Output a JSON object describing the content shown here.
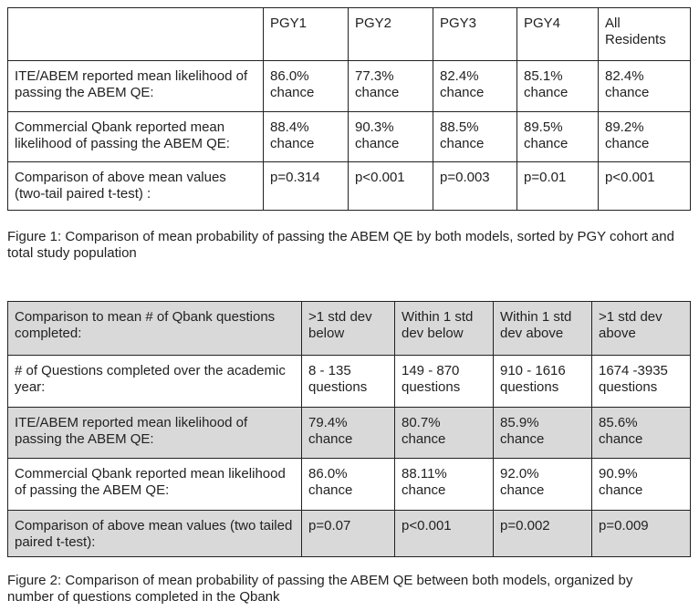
{
  "table1": {
    "columns": [
      "PGY1",
      "PGY2",
      "PGY3",
      "PGY4",
      "All Residents"
    ],
    "rows": [
      {
        "label": "ITE/ABEM reported mean likelihood of passing the ABEM QE:",
        "cells": [
          "86.0% chance",
          "77.3% chance",
          "82.4% chance",
          "85.1% chance",
          "82.4% chance"
        ]
      },
      {
        "label": "Commercial Qbank reported mean likelihood of passing the ABEM QE:",
        "cells": [
          "88.4% chance",
          "90.3% chance",
          "88.5% chance",
          "89.5% chance",
          "89.2% chance"
        ]
      },
      {
        "label": "Comparison of above mean values (two-tail paired t-test) :",
        "cells": [
          "p=0.314",
          "p<0.001",
          "p=0.003",
          "p=0.01",
          "p<0.001"
        ]
      }
    ]
  },
  "caption1": "Figure 1: Comparison of mean probability of passing the ABEM QE by both models, sorted by PGY cohort and total study population",
  "table2": {
    "corner": "Comparison to mean # of Qbank questions completed:",
    "columns": [
      ">1 std dev below",
      "Within 1 std dev below",
      "Within 1 std dev above",
      ">1 std dev above"
    ],
    "rows": [
      {
        "label": "# of Questions completed over the academic year:",
        "cells": [
          "8 - 135 questions",
          "149 - 870 questions",
          "910 - 1616 questions",
          "1674 -3935 questions"
        ]
      },
      {
        "label": "ITE/ABEM reported mean likelihood of passing the ABEM QE:",
        "cells": [
          "79.4% chance",
          "80.7% chance",
          "85.9% chance",
          "85.6% chance"
        ]
      },
      {
        "label": "Commercial Qbank reported mean likelihood of passing the ABEM QE:",
        "cells": [
          "86.0% chance",
          "88.11% chance",
          "92.0% chance",
          "90.9% chance"
        ]
      },
      {
        "label": "Comparison of above mean values (two tailed paired t-test):",
        "cells": [
          "p=0.07",
          "p<0.001",
          "p=0.002",
          "p=0.009"
        ]
      }
    ]
  },
  "caption2": "Figure 2: Comparison of mean probability of passing the ABEM QE between both models, organized by number of questions completed in the Qbank"
}
